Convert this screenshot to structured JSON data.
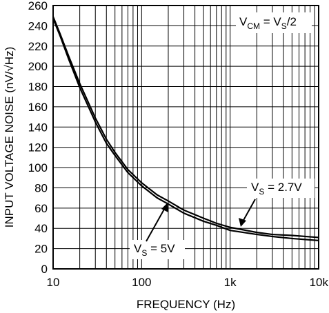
{
  "chart_data": {
    "type": "line",
    "title": "",
    "xlabel": "FREQUENCY (Hz)",
    "ylabel": "INPUT VOLTAGE NOISE (nV/√Hz)",
    "x_scale": "log",
    "xlim": [
      10,
      10000
    ],
    "ylim": [
      0,
      260
    ],
    "grid": true,
    "x_ticks": [
      10,
      100,
      1000,
      10000
    ],
    "x_tick_labels": [
      "10",
      "100",
      "1k",
      "10k"
    ],
    "y_ticks": [
      0,
      20,
      40,
      60,
      80,
      100,
      120,
      140,
      160,
      180,
      200,
      220,
      240,
      260
    ],
    "y_tick_labels": [
      "0",
      "20",
      "40",
      "60",
      "80",
      "100",
      "120",
      "140",
      "160",
      "180",
      "200",
      "220",
      "240",
      "260"
    ],
    "series": [
      {
        "name": "VS = 2.7V",
        "label_main": "V",
        "label_sub": "S",
        "label_rest": " = 2.7V",
        "x": [
          10,
          12,
          15,
          20,
          30,
          40,
          50,
          70,
          100,
          150,
          200,
          300,
          500,
          700,
          1000,
          2000,
          3000,
          5000,
          10000
        ],
        "y": [
          249,
          232,
          210,
          183,
          149,
          128,
          115,
          98,
          85,
          73,
          67,
          58,
          50,
          45,
          41,
          36,
          34,
          33,
          31
        ]
      },
      {
        "name": "VS = 5V",
        "label_main": "V",
        "label_sub": "S",
        "label_rest": " = 5V",
        "x": [
          10,
          12,
          15,
          20,
          30,
          40,
          50,
          70,
          100,
          150,
          200,
          300,
          500,
          700,
          1000,
          2000,
          3000,
          5000,
          10000
        ],
        "y": [
          247,
          230,
          207,
          179,
          145,
          124,
          112,
          95,
          82,
          70,
          64,
          55,
          47,
          43,
          38,
          34,
          32,
          30,
          28
        ]
      }
    ],
    "annotation": {
      "text_main": "V",
      "text_sub": "CM",
      "text_eq": " = V",
      "text_sub2": "S",
      "text_rest": "/2"
    },
    "colors": {
      "line": "#000000",
      "grid": "#000000",
      "background": "#ffffff"
    }
  }
}
